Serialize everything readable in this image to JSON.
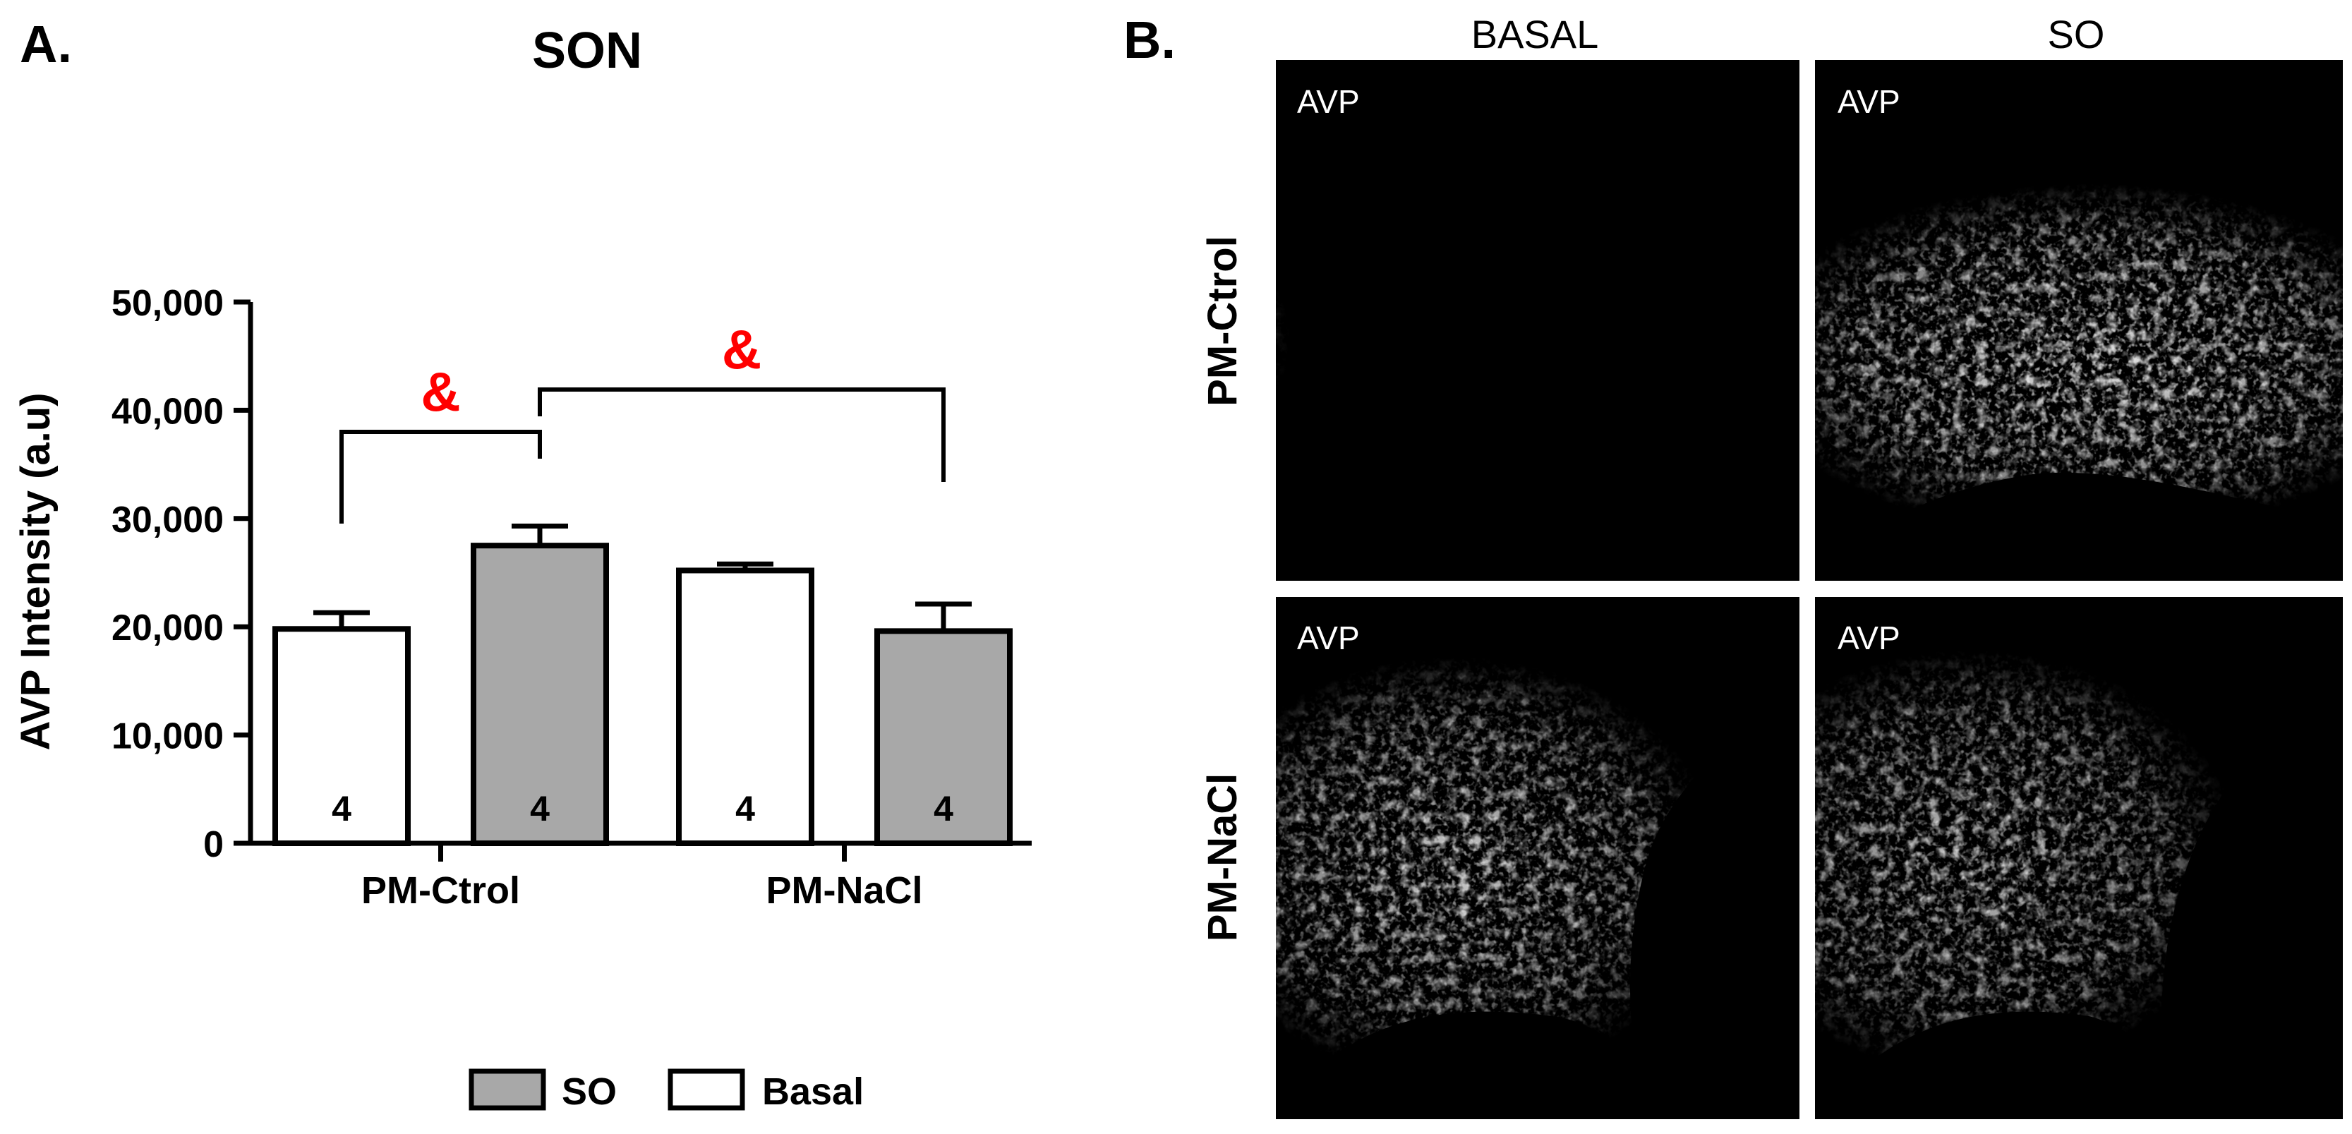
{
  "panel_a": {
    "label": "A.",
    "title": "SON",
    "ylabel": "AVP Intensity (a.u)",
    "significance_marker": "&"
  },
  "panel_b": {
    "label": "B.",
    "col_headers": [
      "BASAL",
      "SO"
    ],
    "row_headers": [
      "PM-Ctrol",
      "PM-NaCl"
    ],
    "panel_text": "AVP"
  },
  "colors": {
    "so_fill": "#a8a8a8",
    "basal_fill": "#ffffff",
    "significance": "#ff0000",
    "axis": "#000000"
  },
  "chart_data": {
    "type": "bar",
    "title": "SON",
    "xlabel": "",
    "ylabel": "AVP Intensity (a.u)",
    "ylim": [
      0,
      50000
    ],
    "yticks": [
      0,
      10000,
      20000,
      30000,
      40000,
      50000
    ],
    "ytick_labels": [
      "0",
      "10,000",
      "20,000",
      "30,000",
      "40,000",
      "50,000"
    ],
    "grid": false,
    "legend_position": "bottom",
    "categories": [
      "PM-Ctrol",
      "PM-NaCl"
    ],
    "series": [
      {
        "name": "Basal",
        "values": [
          19800,
          25200
        ],
        "errors": [
          1500,
          600
        ],
        "n": [
          "4",
          "4"
        ]
      },
      {
        "name": "SO",
        "values": [
          27500,
          19600
        ],
        "errors": [
          1800,
          2500
        ],
        "n": [
          "4",
          "4"
        ]
      }
    ],
    "legend_order": [
      "SO",
      "Basal"
    ],
    "comparisons": [
      {
        "from": [
          "PM-Ctrol",
          "Basal"
        ],
        "to": [
          "PM-Ctrol",
          "SO"
        ],
        "label": "&"
      },
      {
        "from": [
          "PM-Ctrol",
          "SO"
        ],
        "to": [
          "PM-NaCl",
          "SO"
        ],
        "label": "&"
      }
    ]
  }
}
